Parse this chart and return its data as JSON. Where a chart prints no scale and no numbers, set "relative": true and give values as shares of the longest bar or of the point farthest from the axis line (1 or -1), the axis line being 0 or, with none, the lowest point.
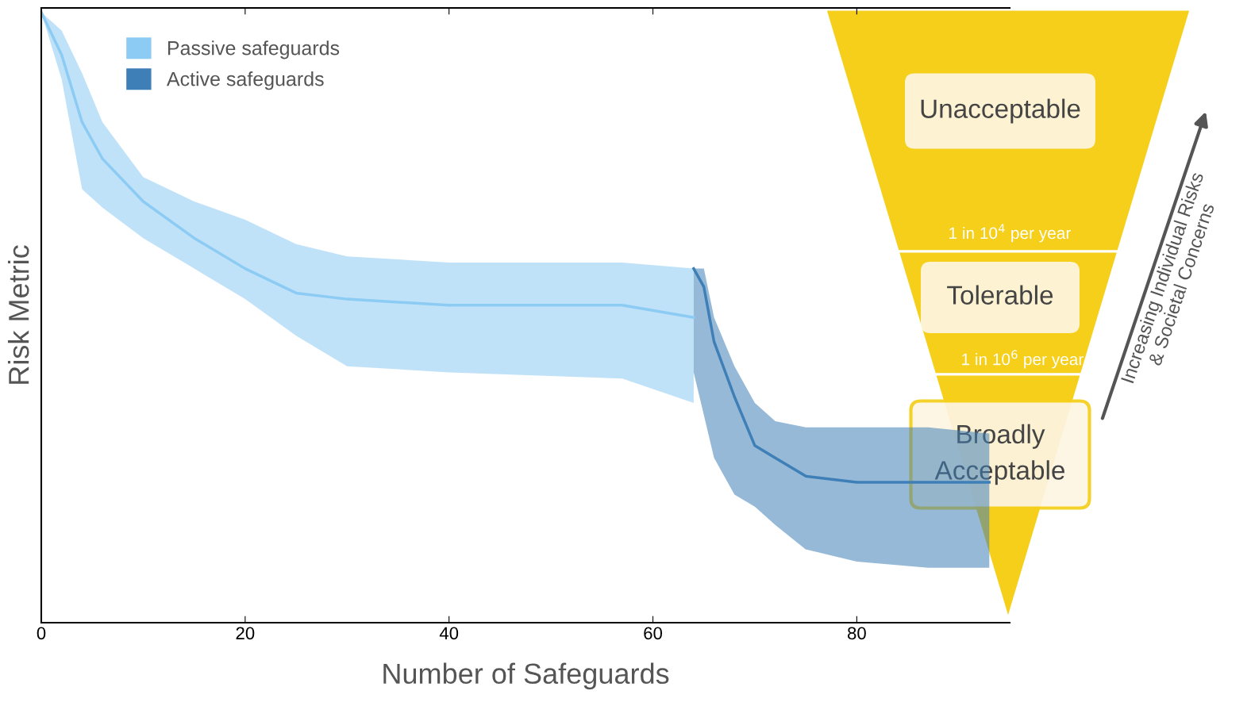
{
  "chart_data": [
    {
      "type": "line",
      "relative": true,
      "xlabel": "Number of Safeguards",
      "ylabel": "Risk Metric",
      "xlim": [
        0,
        95
      ],
      "xticks": [
        0,
        20,
        40,
        60,
        80
      ],
      "tick_labels": "x",
      "legend": "top left",
      "grid": false,
      "series": [
        {
          "name": "Passive safeguards",
          "color": "#8ccbf3",
          "x": [
            0,
            2,
            4,
            6,
            10,
            15,
            20,
            25,
            30,
            40,
            57,
            64
          ],
          "values": [
            1.0,
            0.93,
            0.82,
            0.76,
            0.69,
            0.63,
            0.58,
            0.54,
            0.53,
            0.52,
            0.52,
            0.5
          ],
          "lower": [
            1.0,
            0.89,
            0.71,
            0.68,
            0.63,
            0.58,
            0.53,
            0.47,
            0.42,
            0.41,
            0.4,
            0.36
          ],
          "upper": [
            1.0,
            0.97,
            0.9,
            0.82,
            0.73,
            0.69,
            0.66,
            0.62,
            0.6,
            0.59,
            0.59,
            0.58
          ]
        },
        {
          "name": "Active safeguards",
          "color": "#3f7fb7",
          "x": [
            64,
            65,
            66,
            68,
            70,
            72,
            75,
            80,
            87,
            93
          ],
          "values": [
            0.58,
            0.55,
            0.46,
            0.37,
            0.29,
            0.27,
            0.24,
            0.23,
            0.23,
            0.23
          ],
          "lower": [
            0.41,
            0.34,
            0.27,
            0.21,
            0.19,
            0.16,
            0.12,
            0.1,
            0.09,
            0.09
          ],
          "upper": [
            0.58,
            0.58,
            0.5,
            0.42,
            0.36,
            0.33,
            0.32,
            0.32,
            0.32,
            0.31
          ]
        }
      ]
    },
    {
      "type": "other",
      "categories": [
        "Unacceptable",
        "Tolerable",
        "Broadly Acceptable"
      ],
      "colors": [
        "#f5cf1a",
        "#f5cf1a",
        "#f5cf1a"
      ],
      "annotations": [
        "1 in 10$^{4}$ per year",
        "1 in 10$^{6}$ per year",
        "Increasing Individual Risks\n& Societal Concerns"
      ]
    }
  ]
}
